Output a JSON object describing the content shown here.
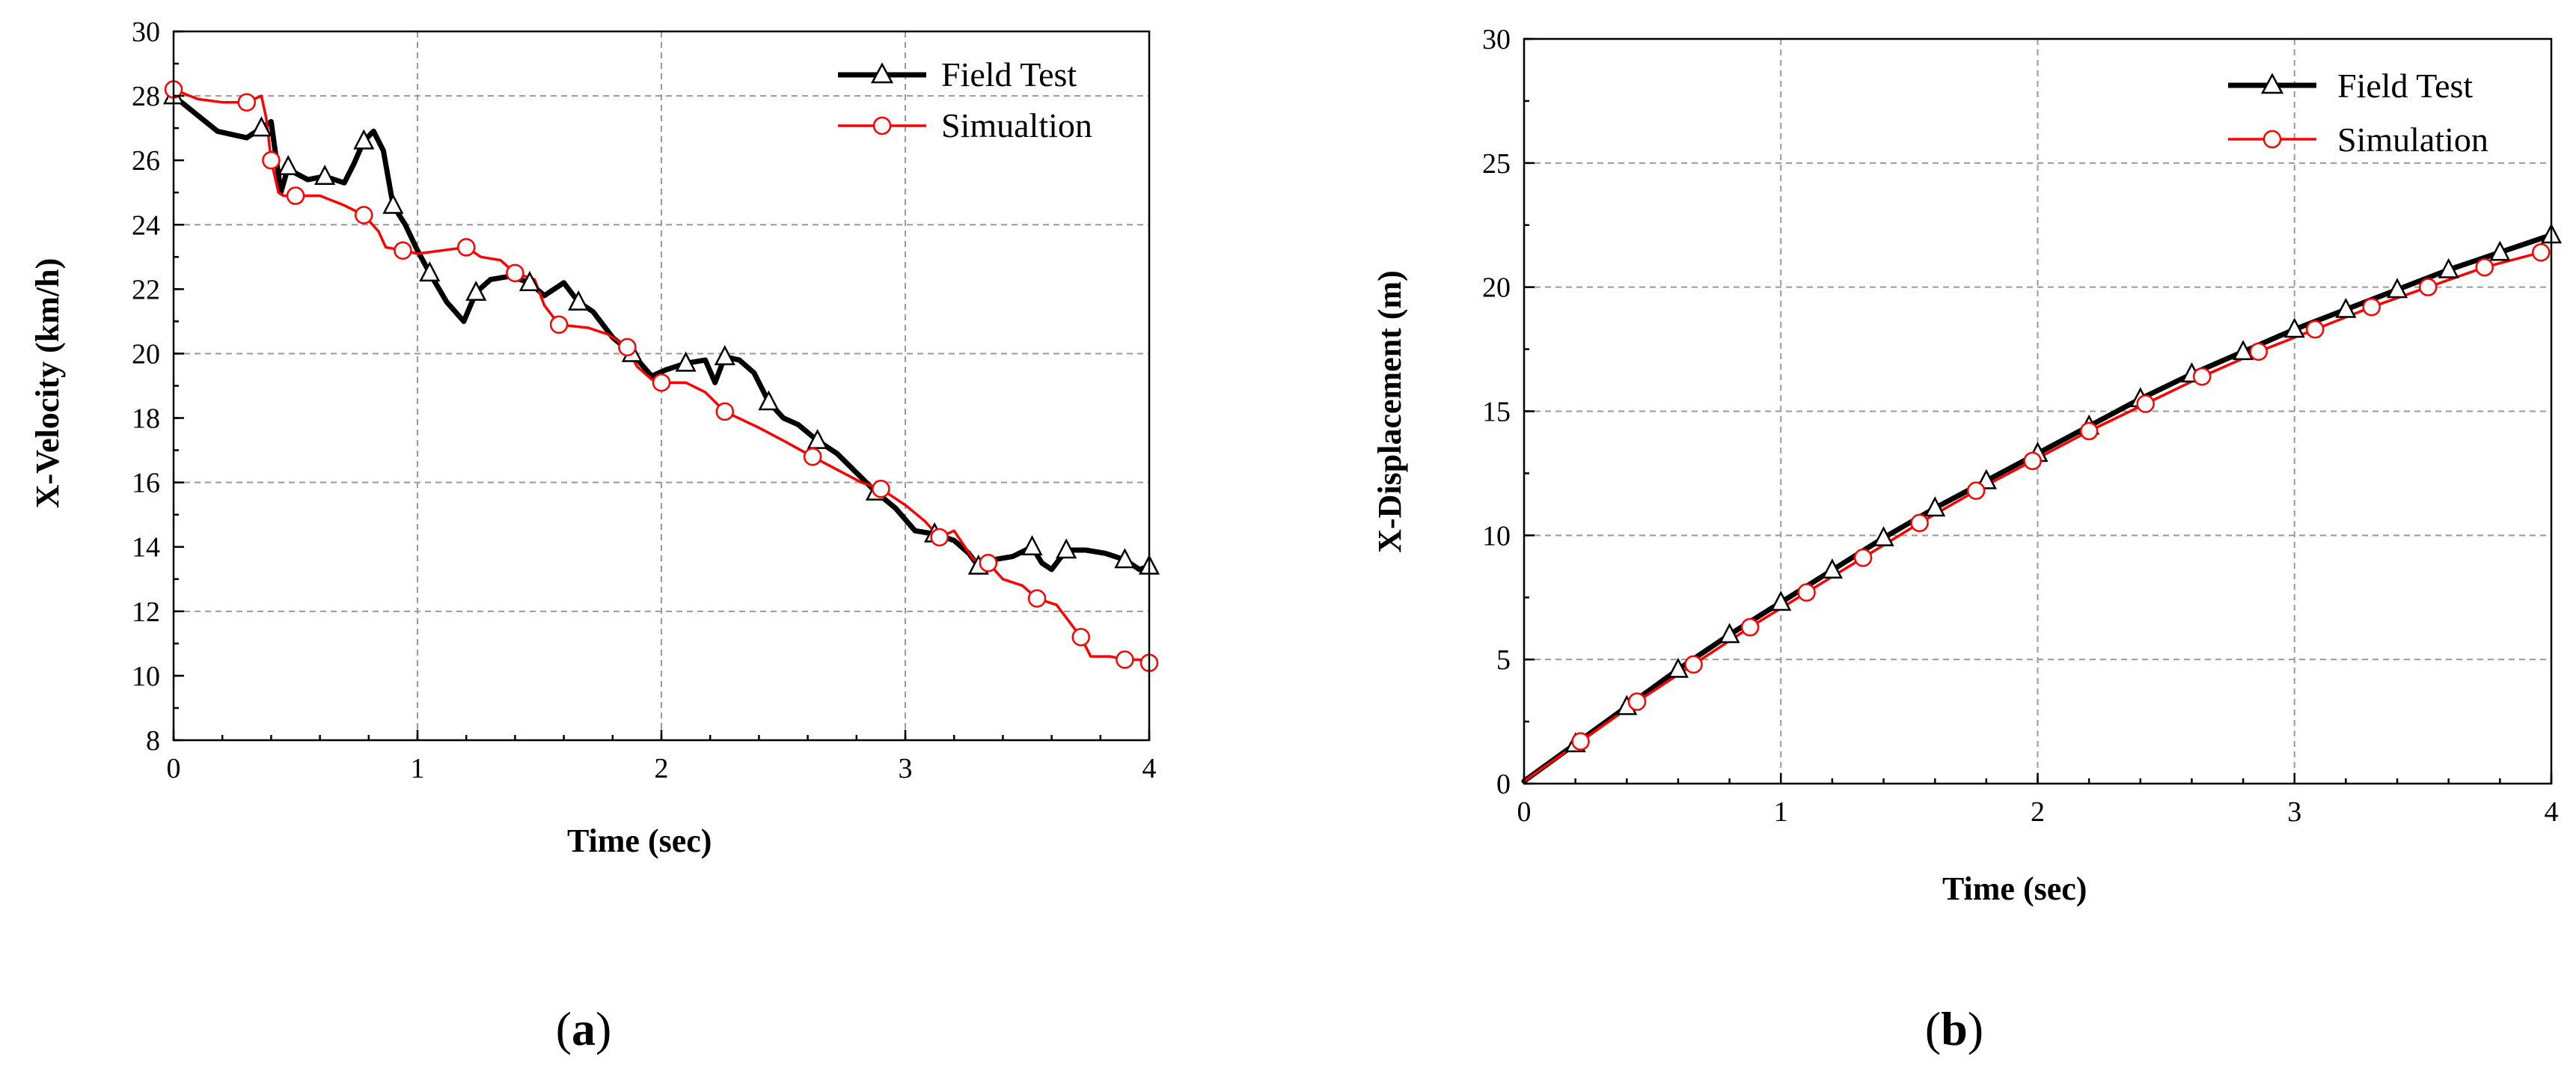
{
  "chart_data": [
    {
      "type": "line",
      "panel_label": "a",
      "xlabel": "Time (sec)",
      "ylabel": "X-Velocity (km/h)",
      "xlim": [
        0,
        4
      ],
      "ylim": [
        8,
        30
      ],
      "xticks": [
        0,
        1,
        2,
        3,
        4
      ],
      "yticks": [
        8,
        10,
        12,
        14,
        16,
        18,
        20,
        22,
        24,
        26,
        28,
        30
      ],
      "grid": true,
      "legend_position": "top-right",
      "series": [
        {
          "name": "Field Test",
          "color": "#000000",
          "marker": "triangle",
          "x": [
            0,
            0.18,
            0.3,
            0.36,
            0.4,
            0.44,
            0.47,
            0.5,
            0.55,
            0.62,
            0.7,
            0.74,
            0.78,
            0.82,
            0.86,
            0.9,
            0.95,
            1.0,
            1.05,
            1.12,
            1.19,
            1.24,
            1.3,
            1.38,
            1.46,
            1.52,
            1.6,
            1.66,
            1.72,
            1.8,
            1.88,
            1.96,
            2.02,
            2.1,
            2.18,
            2.22,
            2.26,
            2.32,
            2.38,
            2.44,
            2.5,
            2.56,
            2.64,
            2.72,
            2.8,
            2.88,
            2.96,
            3.04,
            3.12,
            3.2,
            3.26,
            3.3,
            3.36,
            3.44,
            3.52,
            3.56,
            3.6,
            3.66,
            3.74,
            3.82,
            3.9,
            3.96,
            4.0
          ],
          "y": [
            28.0,
            26.9,
            26.7,
            27.0,
            27.2,
            25.0,
            25.8,
            25.6,
            25.4,
            25.5,
            25.3,
            25.9,
            26.6,
            26.9,
            26.3,
            24.6,
            24.0,
            23.2,
            22.5,
            21.6,
            21.0,
            21.9,
            22.3,
            22.4,
            22.2,
            21.8,
            22.2,
            21.6,
            21.3,
            20.5,
            20.0,
            19.3,
            19.5,
            19.7,
            19.8,
            19.1,
            19.9,
            19.8,
            19.4,
            18.5,
            18.0,
            17.8,
            17.3,
            16.9,
            16.3,
            15.7,
            15.2,
            14.5,
            14.4,
            14.2,
            13.8,
            13.4,
            13.6,
            13.7,
            14.0,
            13.5,
            13.3,
            13.9,
            13.9,
            13.8,
            13.6,
            13.3,
            13.4
          ]
        },
        {
          "name": "Simualtion",
          "color": "#ff0000",
          "marker": "circle",
          "x": [
            0,
            0.1,
            0.2,
            0.3,
            0.36,
            0.38,
            0.4,
            0.43,
            0.45,
            0.5,
            0.6,
            0.7,
            0.78,
            0.84,
            0.87,
            0.94,
            1.0,
            1.1,
            1.2,
            1.26,
            1.34,
            1.4,
            1.48,
            1.52,
            1.58,
            1.7,
            1.78,
            1.86,
            1.9,
            1.96,
            2.0,
            2.1,
            2.18,
            2.26,
            2.4,
            2.5,
            2.62,
            2.72,
            2.82,
            2.9,
            3.0,
            3.08,
            3.14,
            3.2,
            3.28,
            3.34,
            3.4,
            3.48,
            3.54,
            3.62,
            3.66,
            3.72,
            3.76,
            3.84,
            3.9,
            3.96,
            4.0
          ],
          "y": [
            28.2,
            27.9,
            27.8,
            27.8,
            28.0,
            27.3,
            26.0,
            25.0,
            24.9,
            24.9,
            24.9,
            24.6,
            24.3,
            23.8,
            23.3,
            23.2,
            23.1,
            23.2,
            23.3,
            23.0,
            22.9,
            22.5,
            22.3,
            21.5,
            20.9,
            20.8,
            20.6,
            20.2,
            19.6,
            19.2,
            19.1,
            19.1,
            18.8,
            18.2,
            17.7,
            17.3,
            16.8,
            16.4,
            16.0,
            15.8,
            15.3,
            14.8,
            14.3,
            14.5,
            13.6,
            13.5,
            13.0,
            12.8,
            12.4,
            12.2,
            11.8,
            11.2,
            10.6,
            10.6,
            10.5,
            10.5,
            10.4
          ]
        }
      ]
    },
    {
      "type": "line",
      "panel_label": "b",
      "xlabel": "Time (sec)",
      "ylabel": "X-Displacement (m)",
      "xlim": [
        0,
        4
      ],
      "ylim": [
        0,
        30
      ],
      "xticks": [
        0,
        1,
        2,
        3,
        4
      ],
      "yticks": [
        0,
        5,
        10,
        15,
        20,
        25,
        30
      ],
      "grid": true,
      "legend_position": "top-right",
      "series": [
        {
          "name": "Field Test",
          "color": "#000000",
          "marker": "triangle",
          "x": [
            0,
            0.2,
            0.4,
            0.6,
            0.8,
            1.0,
            1.2,
            1.4,
            1.6,
            1.8,
            2.0,
            2.2,
            2.4,
            2.6,
            2.8,
            3.0,
            3.2,
            3.4,
            3.6,
            3.8,
            4.0
          ],
          "y": [
            0.1,
            1.6,
            3.1,
            4.6,
            6.0,
            7.3,
            8.6,
            9.9,
            11.1,
            12.2,
            13.3,
            14.4,
            15.5,
            16.5,
            17.4,
            18.3,
            19.1,
            19.9,
            20.7,
            21.4,
            22.1
          ]
        },
        {
          "name": "Simulation",
          "color": "#ff0000",
          "marker": "circle",
          "x": [
            0,
            0.22,
            0.44,
            0.66,
            0.88,
            1.1,
            1.32,
            1.54,
            1.76,
            1.98,
            2.2,
            2.42,
            2.64,
            2.86,
            3.08,
            3.3,
            3.52,
            3.74,
            3.96
          ],
          "y": [
            0.1,
            1.7,
            3.3,
            4.8,
            6.3,
            7.7,
            9.1,
            10.5,
            11.8,
            13.0,
            14.2,
            15.3,
            16.4,
            17.4,
            18.3,
            19.2,
            20.0,
            20.8,
            21.4
          ]
        }
      ]
    }
  ]
}
